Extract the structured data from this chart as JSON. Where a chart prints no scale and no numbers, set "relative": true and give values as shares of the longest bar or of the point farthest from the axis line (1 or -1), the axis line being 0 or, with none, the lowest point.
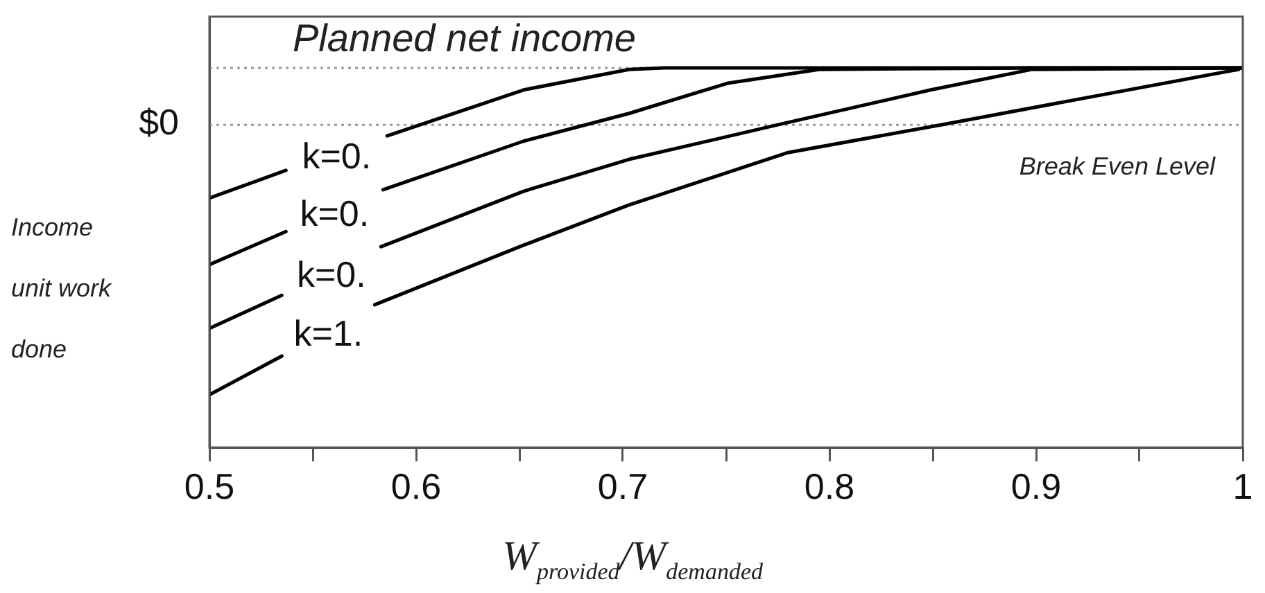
{
  "chart_data": {
    "type": "line",
    "relative": true,
    "xlabel": "W$_{provided}$/W$_{demanded}$",
    "ylabel": "Income unit work done",
    "xlim": [
      0.5,
      1.0
    ],
    "xticks": [
      {
        "value": 0.5,
        "label": "0.5"
      },
      {
        "value": 0.55,
        "label": null
      },
      {
        "value": 0.6,
        "label": "0.6"
      },
      {
        "value": 0.65,
        "label": null
      },
      {
        "value": 0.7,
        "label": "0.7"
      },
      {
        "value": 0.75,
        "label": null
      },
      {
        "value": 0.8,
        "label": "0.8"
      },
      {
        "value": 0.85,
        "label": null
      },
      {
        "value": 0.9,
        "label": "0.9"
      },
      {
        "value": 0.95,
        "label": null
      },
      {
        "value": 1.0,
        "label": "1"
      }
    ],
    "grid": false,
    "marker": "none",
    "line_style": "solid",
    "series": [
      {
        "name": "k=0.",
        "color": "#000000",
        "x": [
          0.5,
          0.537,
          0.56,
          0.586,
          0.652,
          0.703,
          0.72,
          0.8,
          0.9,
          1.0
        ],
        "values": [
          0.657,
          0.73,
          null,
          0.821,
          0.942,
          0.996,
          1.0,
          1.0,
          1.0,
          1.0
        ]
      },
      {
        "name": "k=0.",
        "color": "#000000",
        "x": [
          0.5,
          0.537,
          0.56,
          0.584,
          0.652,
          0.703,
          0.751,
          0.795,
          0.9,
          1.0
        ],
        "values": [
          0.482,
          0.569,
          null,
          0.679,
          0.807,
          0.88,
          0.96,
          0.996,
          1.0,
          1.0
        ]
      },
      {
        "name": "k=0.",
        "color": "#000000",
        "x": [
          0.5,
          0.535,
          0.56,
          0.583,
          0.652,
          0.703,
          0.775,
          0.849,
          0.898,
          1.0
        ],
        "values": [
          0.314,
          0.401,
          null,
          0.529,
          0.675,
          0.759,
          0.85,
          0.942,
          0.996,
          1.0
        ]
      },
      {
        "name": "k=1.",
        "color": "#000000",
        "x": [
          0.5,
          0.535,
          0.56,
          0.58,
          0.652,
          0.703,
          0.78,
          0.854,
          0.998
        ],
        "values": [
          0.139,
          0.241,
          null,
          0.376,
          0.533,
          0.639,
          0.777,
          0.85,
          0.996
        ]
      }
    ],
    "ref_lines": [
      {
        "axis": "y",
        "value": 1.0,
        "label": "Planned net income",
        "color": "#999999",
        "line_style": "dotted"
      },
      {
        "axis": "y",
        "value": 0.85,
        "label": "Break Even Level",
        "color": "#999999",
        "line_style": "dotted"
      }
    ],
    "annotations": [
      "$0"
    ]
  }
}
